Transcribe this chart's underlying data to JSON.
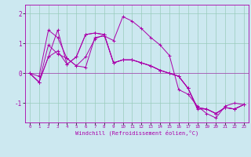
{
  "xlabel": "Windchill (Refroidissement éolien,°C)",
  "bg_color": "#cce8f0",
  "line_color": "#aa00aa",
  "grid_color": "#99ccbb",
  "xlim": [
    -0.5,
    23.5
  ],
  "ylim": [
    -1.65,
    2.3
  ],
  "yticks": [
    -1,
    0,
    1,
    2
  ],
  "xtick_labels": [
    "0",
    "1",
    "2",
    "3",
    "4",
    "5",
    "6",
    "7",
    "8",
    "9",
    "10",
    "11",
    "12",
    "13",
    "14",
    "15",
    "16",
    "17",
    "18",
    "19",
    "20",
    "21",
    "22",
    "23"
  ],
  "series": [
    [
      0.0,
      -0.1,
      1.45,
      1.2,
      0.5,
      0.25,
      0.2,
      1.2,
      1.25,
      1.1,
      1.9,
      1.75,
      1.5,
      1.2,
      0.95,
      0.6,
      -0.55,
      -0.7,
      -1.1,
      -1.35,
      -1.5,
      -1.1,
      -1.0,
      -1.05
    ],
    [
      0.0,
      -0.3,
      0.95,
      0.65,
      0.5,
      0.25,
      0.55,
      1.15,
      1.3,
      0.35,
      0.45,
      0.45,
      0.35,
      0.25,
      0.1,
      0.0,
      -0.1,
      -0.5,
      -1.2,
      -1.2,
      -1.35,
      -1.15,
      -1.2,
      -1.05
    ],
    [
      0.0,
      -0.3,
      0.55,
      1.45,
      0.3,
      0.55,
      1.3,
      1.35,
      1.3,
      0.35,
      0.45,
      0.45,
      0.35,
      0.25,
      0.1,
      0.0,
      -0.1,
      -0.5,
      -1.15,
      -1.2,
      -1.35,
      -1.15,
      -1.2,
      -1.05
    ],
    [
      0.0,
      -0.3,
      0.55,
      0.75,
      0.3,
      0.55,
      1.3,
      1.35,
      1.3,
      0.35,
      0.45,
      0.45,
      0.35,
      0.25,
      0.1,
      0.0,
      -0.1,
      -0.5,
      -1.15,
      -1.2,
      -1.35,
      -1.15,
      -1.2,
      -1.05
    ]
  ]
}
